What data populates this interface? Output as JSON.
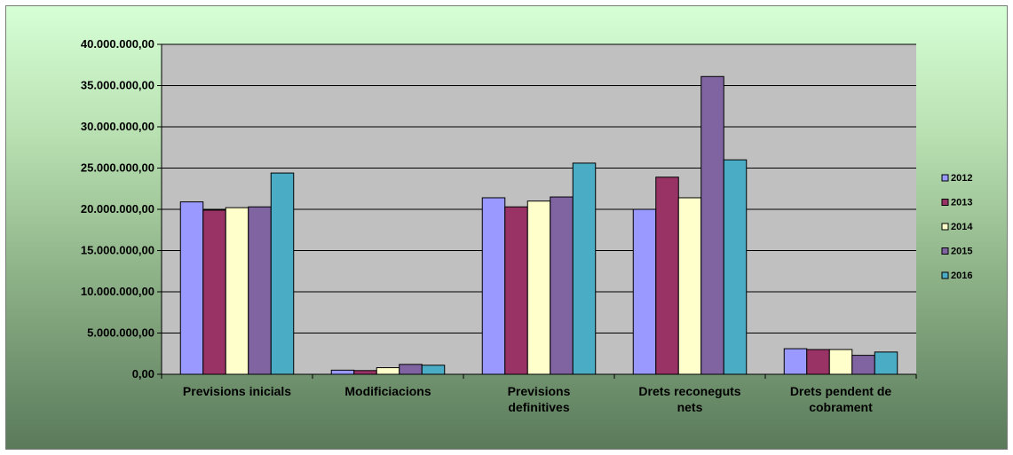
{
  "chart_data": {
    "type": "bar",
    "categories": [
      [
        "Previsions inicials"
      ],
      [
        "Modificiacions"
      ],
      [
        "Previsions",
        "definitives"
      ],
      [
        "Drets reconeguts",
        "nets"
      ],
      [
        "Drets pendent de",
        "cobrament"
      ]
    ],
    "series": [
      {
        "name": "2012",
        "color": "#9999ff",
        "values": [
          20900000,
          500000,
          21400000,
          20000000,
          3100000
        ]
      },
      {
        "name": "2013",
        "color": "#993366",
        "values": [
          19900000,
          450000,
          20300000,
          23900000,
          3000000
        ]
      },
      {
        "name": "2014",
        "color": "#ffffcc",
        "values": [
          20200000,
          800000,
          21000000,
          21400000,
          3000000
        ]
      },
      {
        "name": "2015",
        "color": "#8064a2",
        "values": [
          20300000,
          1200000,
          21500000,
          36100000,
          2300000
        ]
      },
      {
        "name": "2016",
        "color": "#4bacc6",
        "values": [
          24400000,
          1100000,
          25600000,
          26000000,
          2700000
        ]
      }
    ],
    "ylim": [
      0,
      40000000
    ],
    "yticks": [
      0,
      5000000,
      10000000,
      15000000,
      20000000,
      25000000,
      30000000,
      35000000,
      40000000
    ],
    "ytick_labels": [
      "0,00",
      "5.000.000,00",
      "10.000.000,00",
      "15.000.000,00",
      "20.000.000,00",
      "25.000.000,00",
      "30.000.000,00",
      "35.000.000,00",
      "40.000.000,00"
    ],
    "plot_background": "#c0c0c0",
    "grid": true,
    "legend_position": "right"
  }
}
